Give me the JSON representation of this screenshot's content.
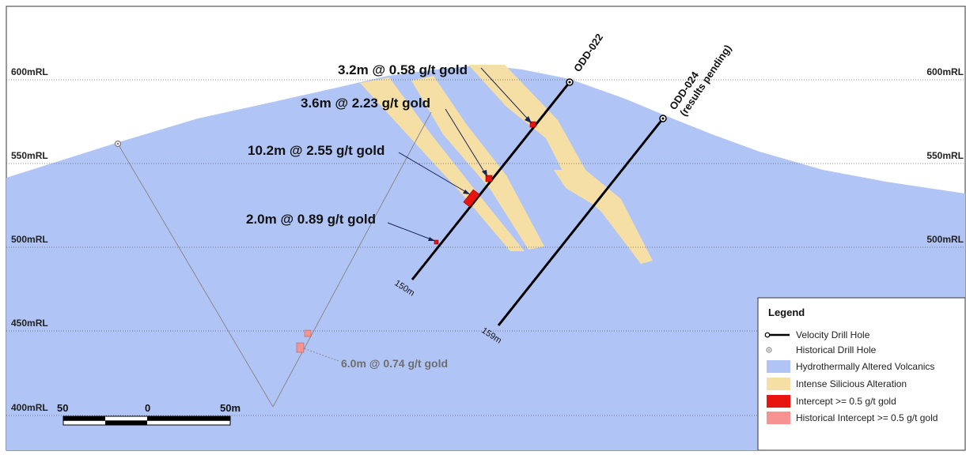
{
  "rl_labels": [
    "600mRL",
    "550mRL",
    "500mRL",
    "450mRL",
    "400mRL"
  ],
  "drill_holes": {
    "odd022": {
      "name": "ODD-022",
      "depth": "150m"
    },
    "odd024": {
      "name": "ODD-024",
      "note": "(results pending)",
      "depth": "159m"
    }
  },
  "intercepts": [
    "3.2m @ 0.58 g/t gold",
    "3.6m @ 2.23 g/t gold",
    "10.2m @ 2.55 g/t gold",
    "2.0m @ 0.89 g/t gold"
  ],
  "historical_intercept": "6.0m @ 0.74 g/t gold",
  "scale_bar": {
    "left": "50",
    "mid": "0",
    "right": "50m"
  },
  "legend": {
    "title": "Legend",
    "items": [
      "Velocity Drill Hole",
      "Historical Drill Hole",
      "Hydrothermally Altered Volcanics",
      "Intense Silicious Alteration",
      "Intercept >= 0.5 g/t gold",
      "Historical Intercept >= 0.5 g/t gold"
    ]
  },
  "colors": {
    "volcanics": "#b0c4f6",
    "silicious": "#f5dfa4",
    "intercept": "#e8140f",
    "historical_intercept": "#f59292",
    "hole": "#000000",
    "historical_hole": "#8a8a8a"
  }
}
